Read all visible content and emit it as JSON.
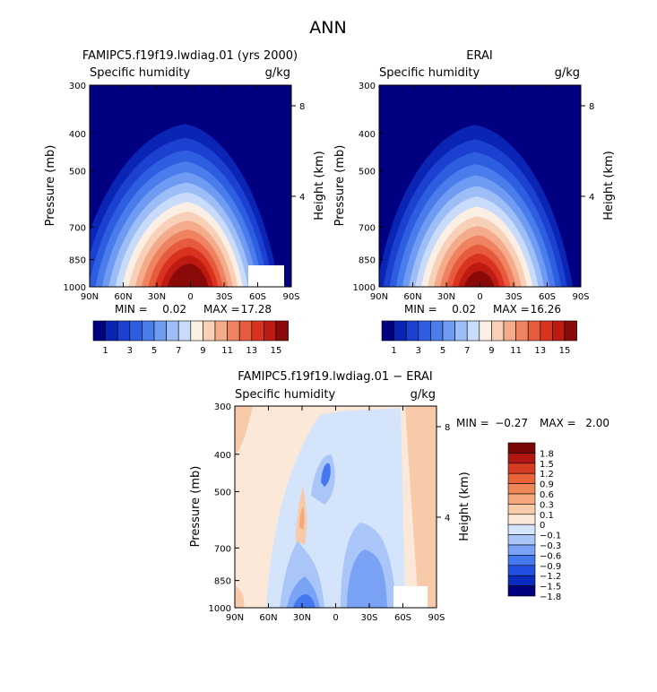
{
  "figure": {
    "title": "ANN"
  },
  "colors": {
    "abs_scale": [
      "#000080",
      "#0a24b4",
      "#1c40d0",
      "#2e5ee0",
      "#4a7cec",
      "#6f9cf2",
      "#9cbdf6",
      "#c8dbfa",
      "#fbeee3",
      "#f8d0b8",
      "#f4ab8b",
      "#ee8261",
      "#e65a3d",
      "#d9331f",
      "#bd1a12",
      "#8a0a0a"
    ],
    "diff_scale": [
      "#000080",
      "#0a2cc0",
      "#2350e0",
      "#4577ee",
      "#7aa2f5",
      "#aac6f9",
      "#d3e4fb",
      "#fbe8d9",
      "#f7caa9",
      "#f4a87c",
      "#ef8757",
      "#e8633a",
      "#d53c22",
      "#b01712",
      "#7a0505"
    ]
  },
  "chart_data": [
    {
      "type": "heatmap",
      "subtitle": "FAMIPC5.f19f19.lwdiag.01 (yrs 2000)",
      "left_label": "Specific humidity",
      "right_label": "g/kg",
      "ylabel": "Pressure (mb)",
      "y2label": "Height (km)",
      "x_ticks": [
        "90N",
        "60N",
        "30N",
        "0",
        "30S",
        "60S",
        "90S"
      ],
      "y_ticks": [
        "300",
        "400",
        "500",
        "700",
        "850",
        "1000"
      ],
      "y_tick_values": [
        300,
        400,
        500,
        700,
        850,
        1000
      ],
      "y2_ticks": [
        "8",
        "4"
      ],
      "y2_tick_values": [
        8,
        4
      ],
      "x_range": [
        90,
        -90
      ],
      "y_range": [
        300,
        1000
      ],
      "min_label": "MIN =",
      "min_value": "0.02",
      "max_label": "MAX =",
      "max_value": "17.28",
      "missing_region": "lower-right near 60S-90S below 800 mb",
      "colorbar_labels": [
        "1",
        "3",
        "5",
        "7",
        "9",
        "11",
        "13",
        "15"
      ],
      "levels": [
        1,
        2,
        3,
        4,
        5,
        6,
        7,
        8,
        9,
        10,
        11,
        12,
        13,
        14,
        15
      ],
      "peak": 17.28
    },
    {
      "type": "heatmap",
      "subtitle": "ERAI",
      "left_label": "Specific humidity",
      "right_label": "g/kg",
      "ylabel": "Pressure (mb)",
      "y2label": "Height (km)",
      "x_ticks": [
        "90N",
        "60N",
        "30N",
        "0",
        "30S",
        "60S",
        "90S"
      ],
      "y_ticks": [
        "300",
        "400",
        "500",
        "700",
        "850",
        "1000"
      ],
      "y_tick_values": [
        300,
        400,
        500,
        700,
        850,
        1000
      ],
      "y2_ticks": [
        "8",
        "4"
      ],
      "y2_tick_values": [
        8,
        4
      ],
      "x_range": [
        90,
        -90
      ],
      "y_range": [
        300,
        1000
      ],
      "min_label": "MIN =",
      "min_value": "0.02",
      "max_label": "MAX =",
      "max_value": "16.26",
      "colorbar_labels": [
        "1",
        "3",
        "5",
        "7",
        "9",
        "11",
        "13",
        "15"
      ],
      "levels": [
        1,
        2,
        3,
        4,
        5,
        6,
        7,
        8,
        9,
        10,
        11,
        12,
        13,
        14,
        15
      ],
      "peak": 16.26
    },
    {
      "type": "heatmap",
      "subtitle": "FAMIPC5.f19f19.lwdiag.01 − ERAI",
      "left_label": "Specific humidity",
      "right_label": "g/kg",
      "ylabel": "Pressure (mb)",
      "y2label": "Height (km)",
      "x_ticks": [
        "90N",
        "60N",
        "30N",
        "0",
        "30S",
        "60S",
        "90S"
      ],
      "y_ticks": [
        "300",
        "400",
        "500",
        "700",
        "850",
        "1000"
      ],
      "y_tick_values": [
        300,
        400,
        500,
        700,
        850,
        1000
      ],
      "y2_ticks": [
        "8",
        "4"
      ],
      "y2_tick_values": [
        8,
        4
      ],
      "x_range": [
        90,
        -90
      ],
      "y_range": [
        300,
        1000
      ],
      "min_label": "MIN =",
      "min_value": "−0.27",
      "max_label": "MAX =",
      "max_value": "2.00",
      "colorbar_labels": [
        "1.8",
        "1.5",
        "1.2",
        "0.9",
        "0.6",
        "0.3",
        "0.1",
        "0",
        "−0.1",
        "−0.3",
        "−0.6",
        "−0.9",
        "−1.2",
        "−1.5",
        "−1.8"
      ],
      "levels": [
        -1.8,
        -1.5,
        -1.2,
        -0.9,
        -0.6,
        -0.3,
        -0.1,
        0,
        0.1,
        0.3,
        0.6,
        0.9,
        1.2,
        1.5,
        1.8
      ]
    }
  ]
}
